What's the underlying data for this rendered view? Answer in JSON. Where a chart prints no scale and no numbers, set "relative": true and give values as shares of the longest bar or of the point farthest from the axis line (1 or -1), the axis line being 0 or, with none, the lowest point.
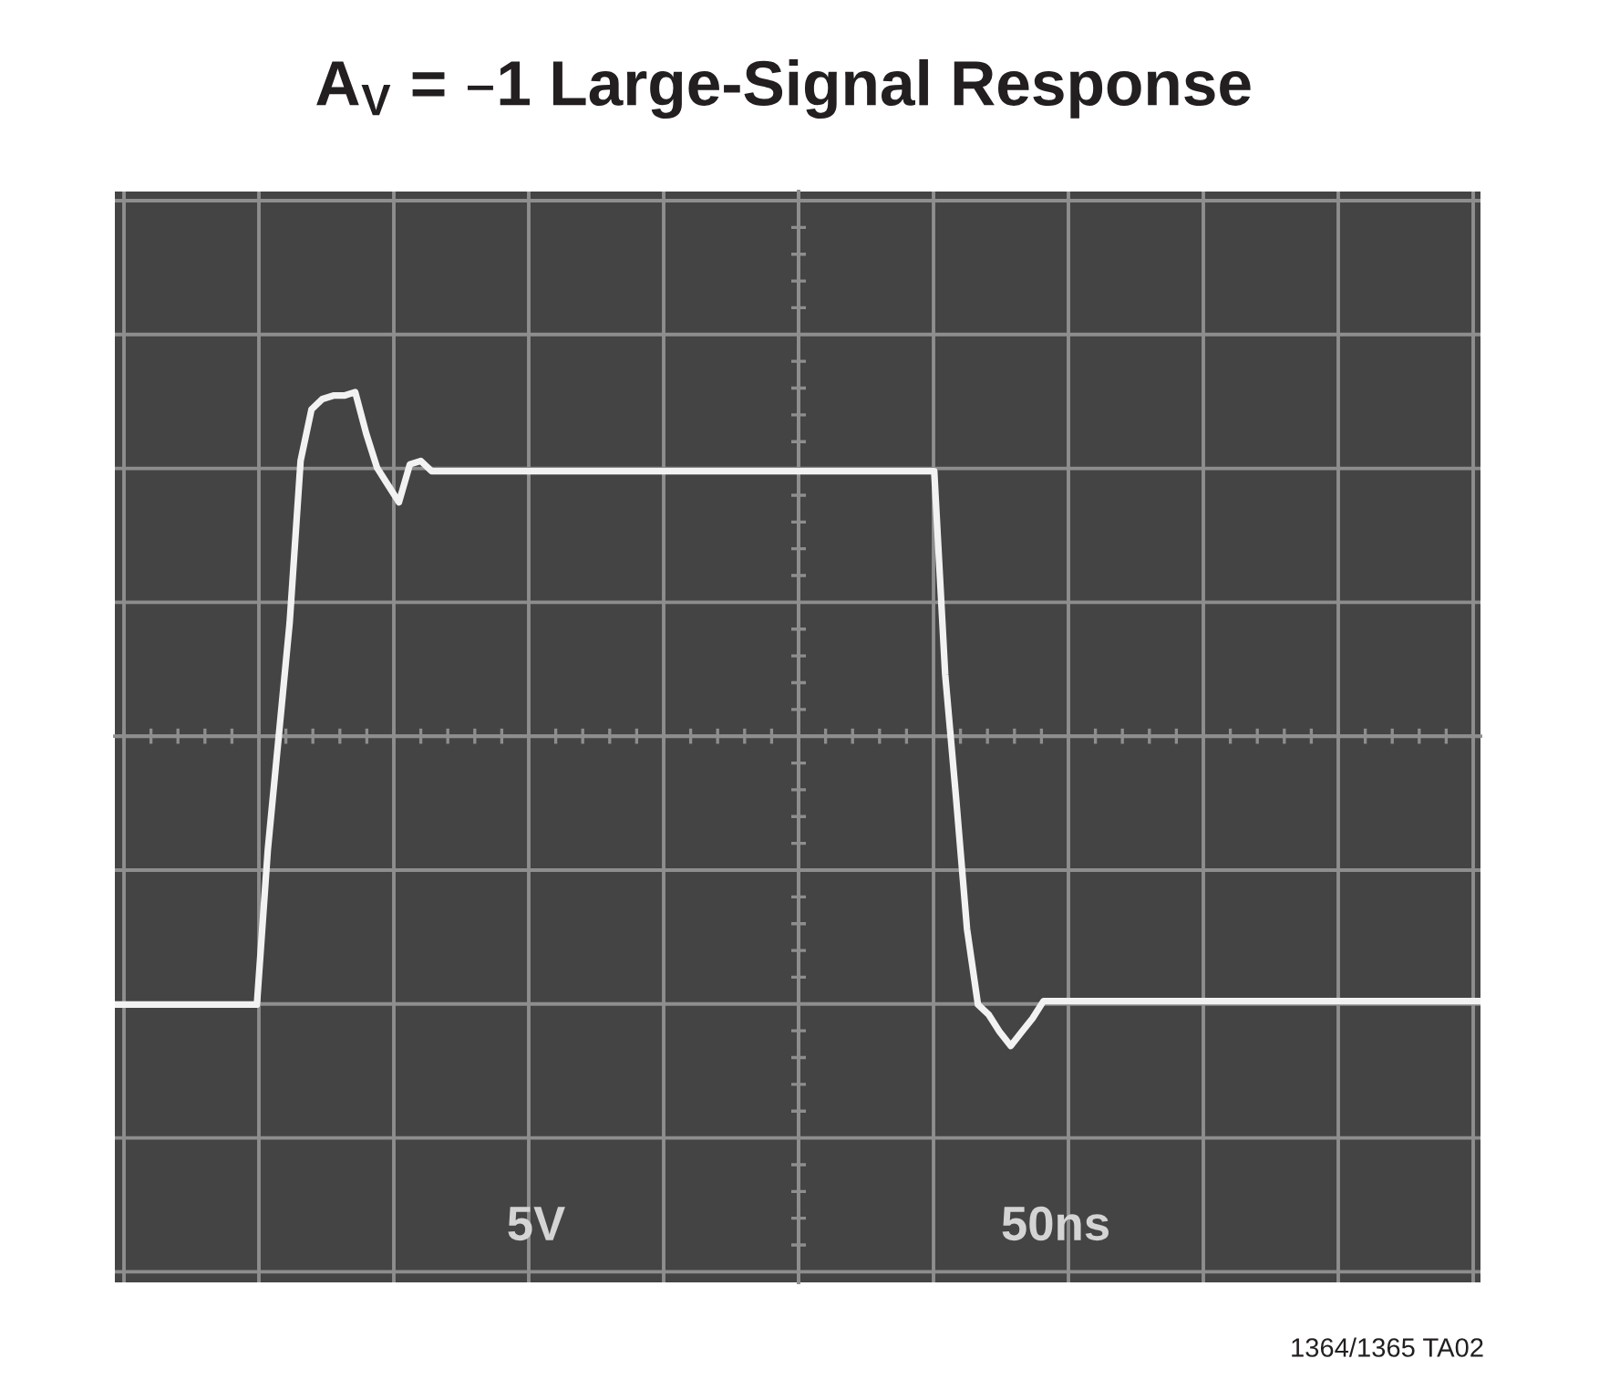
{
  "chart_data": {
    "type": "line",
    "title": "A$_{V}$ = –1 Large-Signal Response",
    "relative": true,
    "grid": true,
    "line_style": "solid",
    "categories": [
      null,
      null,
      null,
      null,
      null,
      null,
      null,
      null,
      null,
      null,
      null,
      null,
      null,
      null,
      null,
      null,
      null,
      null,
      null,
      null,
      null,
      null,
      null,
      null,
      null,
      null,
      null,
      null,
      null,
      null,
      null,
      null,
      null,
      null,
      null,
      null,
      null,
      null,
      null,
      null,
      null,
      null,
      null,
      null,
      null,
      null,
      null,
      null,
      null,
      null,
      null,
      null,
      null,
      null,
      null,
      null,
      null,
      null,
      null,
      null,
      null,
      null,
      null,
      null,
      null,
      null,
      null,
      null,
      null,
      null,
      null,
      null,
      null,
      null,
      null,
      null,
      null,
      null,
      null,
      null,
      null,
      null,
      null,
      null,
      null,
      null,
      null,
      null,
      null,
      null,
      null,
      null,
      null,
      null,
      null,
      null,
      null,
      null,
      null,
      null,
      null,
      null,
      null,
      null,
      null,
      null,
      null,
      null,
      null,
      null,
      null,
      null,
      null,
      null,
      null,
      null,
      null,
      null,
      null,
      null,
      null,
      null,
      null,
      null,
      null,
      null
    ],
    "series": [
      {
        "color": "#f2f2f2",
        "values": [
          -0.78,
          -0.78,
          -0.78,
          -0.78,
          -0.78,
          -0.78,
          -0.78,
          -0.78,
          -0.78,
          -0.78,
          -0.78,
          -0.78,
          -0.78,
          -0.78,
          -0.33,
          0,
          0.33,
          0.8,
          0.95,
          0.98,
          0.99,
          0.99,
          1,
          0.88,
          0.78,
          0.73,
          0.68,
          0.79,
          0.8,
          0.77,
          0.77,
          0.77,
          0.77,
          0.77,
          0.77,
          0.77,
          0.77,
          0.77,
          0.77,
          0.77,
          0.77,
          0.77,
          0.77,
          0.77,
          0.77,
          0.77,
          0.77,
          0.77,
          0.77,
          0.77,
          0.77,
          0.77,
          0.77,
          0.77,
          0.77,
          0.77,
          0.77,
          0.77,
          0.77,
          0.77,
          0.77,
          0.77,
          0.77,
          0.77,
          0.77,
          0.77,
          0.77,
          0.77,
          0.77,
          0.77,
          0.77,
          0.77,
          0.77,
          0.77,
          0.77,
          0.77,
          0.18,
          -0.18,
          -0.56,
          -0.78,
          -0.81,
          -0.86,
          -0.9,
          -0.86,
          -0.82,
          -0.77,
          -0.77,
          -0.77,
          -0.77,
          -0.77,
          -0.77,
          -0.77,
          -0.77,
          -0.77,
          -0.77,
          -0.77,
          -0.77,
          -0.77,
          -0.77,
          -0.77,
          -0.77,
          -0.77,
          -0.77,
          -0.77,
          -0.77,
          -0.77,
          -0.77,
          -0.77,
          -0.77,
          -0.77,
          -0.77,
          -0.77,
          -0.77,
          -0.77,
          -0.77,
          -0.77,
          -0.77,
          -0.77,
          -0.77,
          -0.77,
          -0.77,
          -0.77,
          -0.77,
          -0.77,
          -0.77,
          -0.77
        ]
      }
    ],
    "annotations": [
      "5V",
      "50ns",
      "1364/1365 TA02"
    ]
  }
}
